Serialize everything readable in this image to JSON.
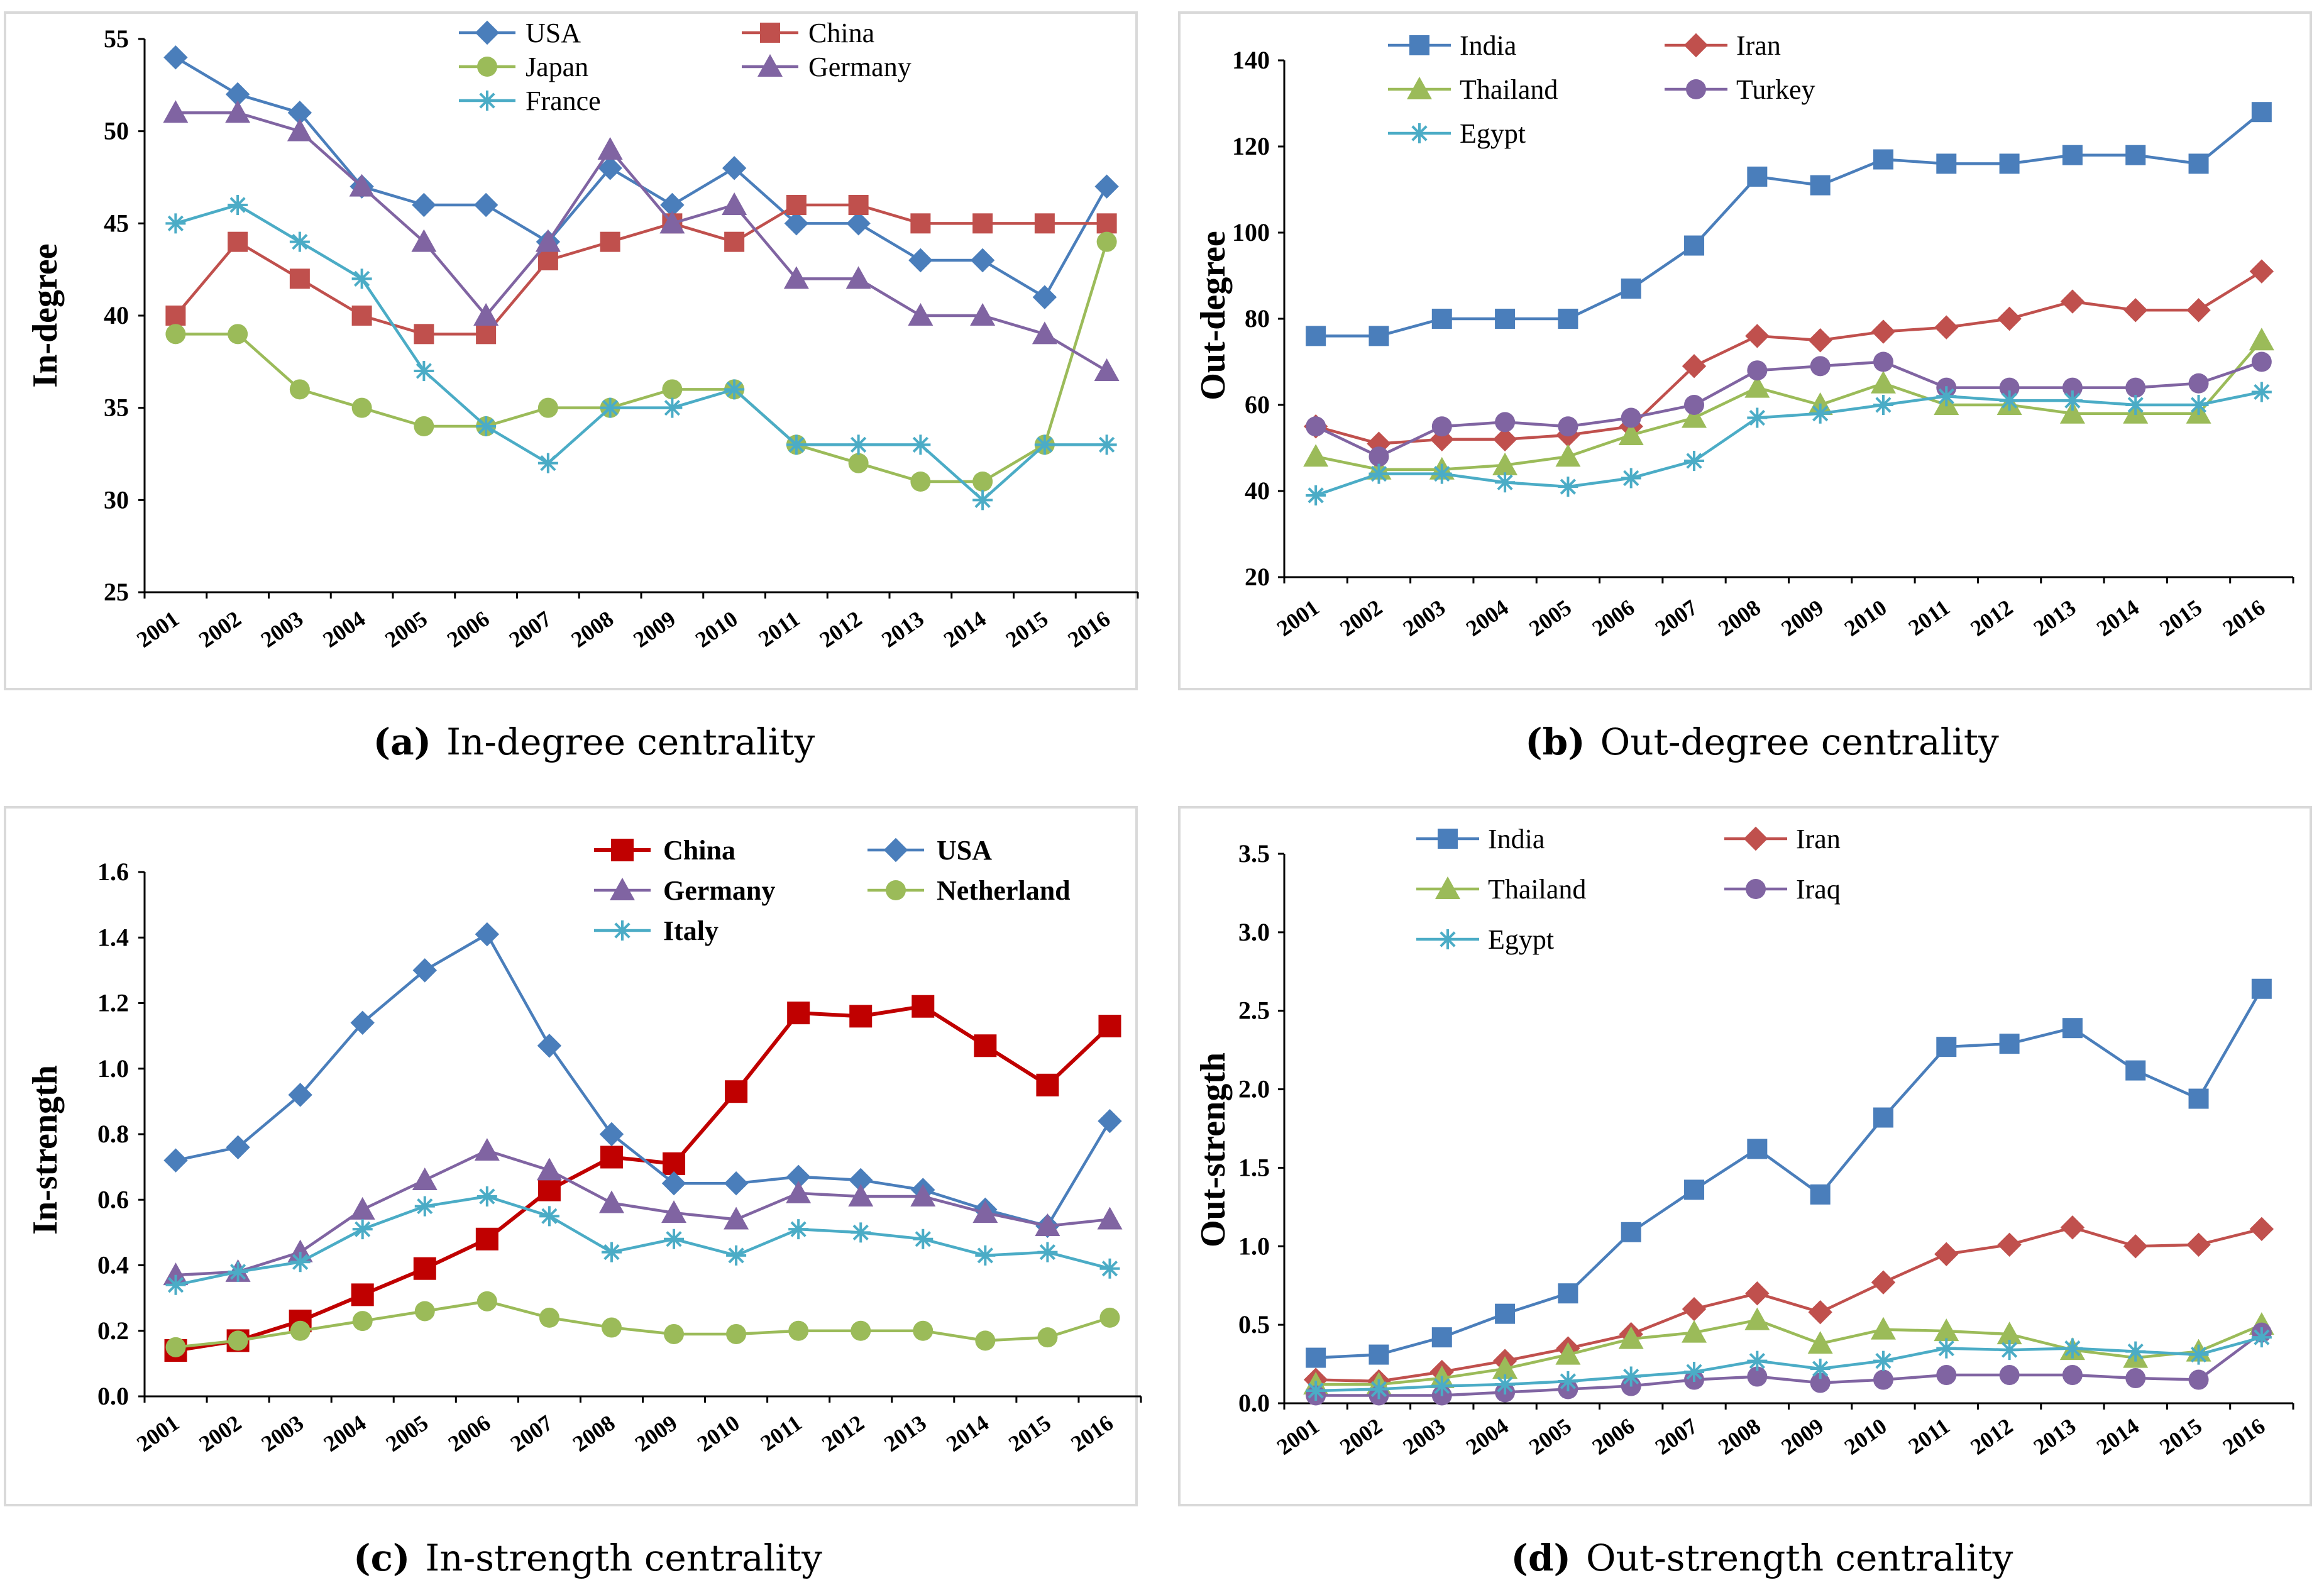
{
  "chart_data": [
    {
      "id": "a",
      "type": "line",
      "caption_tag": "(a)",
      "caption": "In-degree centrality",
      "ylabel": "In-degree",
      "xlabel": "",
      "categories": [
        "2001",
        "2002",
        "2003",
        "2004",
        "2005",
        "2006",
        "2007",
        "2008",
        "2009",
        "2010",
        "2011",
        "2012",
        "2013",
        "2014",
        "2015",
        "2016"
      ],
      "ylim": [
        25,
        55
      ],
      "yticks": [
        25,
        30,
        35,
        40,
        45,
        50,
        55
      ],
      "ytick_labels": [
        "25",
        "30",
        "35",
        "40",
        "45",
        "50",
        "55"
      ],
      "legend_bold": false,
      "series": [
        {
          "name": "USA",
          "color": "#4a7ebb",
          "marker": "diamond",
          "values": [
            54,
            52,
            51,
            47,
            46,
            46,
            44,
            48,
            46,
            48,
            45,
            45,
            43,
            43,
            41,
            47
          ]
        },
        {
          "name": "China",
          "color": "#c0504d",
          "marker": "square",
          "values": [
            40,
            44,
            42,
            40,
            39,
            39,
            43,
            44,
            45,
            44,
            46,
            46,
            45,
            45,
            45,
            45
          ]
        },
        {
          "name": "Japan",
          "color": "#9bbb59",
          "marker": "circle",
          "values": [
            39,
            39,
            36,
            35,
            34,
            34,
            35,
            35,
            36,
            36,
            33,
            32,
            31,
            31,
            33,
            44
          ]
        },
        {
          "name": "Germany",
          "color": "#8064a2",
          "marker": "triangle",
          "values": [
            51,
            51,
            50,
            47,
            44,
            40,
            44,
            49,
            45,
            46,
            42,
            42,
            40,
            40,
            39,
            37
          ]
        },
        {
          "name": "France",
          "color": "#4bacc6",
          "marker": "star",
          "values": [
            45,
            46,
            44,
            42,
            37,
            34,
            32,
            35,
            35,
            36,
            33,
            33,
            33,
            30,
            33,
            33
          ]
        }
      ]
    },
    {
      "id": "b",
      "type": "line",
      "caption_tag": "(b)",
      "caption": "Out-degree centrality",
      "ylabel": "Out-degree",
      "xlabel": "",
      "categories": [
        "2001",
        "2002",
        "2003",
        "2004",
        "2005",
        "2006",
        "2007",
        "2008",
        "2009",
        "2010",
        "2011",
        "2012",
        "2013",
        "2014",
        "2015",
        "2016"
      ],
      "ylim": [
        20,
        140
      ],
      "yticks": [
        20,
        40,
        60,
        80,
        100,
        120,
        140
      ],
      "ytick_labels": [
        "20",
        "40",
        "60",
        "80",
        "100",
        "120",
        "140"
      ],
      "legend_bold": false,
      "series": [
        {
          "name": "India",
          "color": "#4a7ebb",
          "marker": "square",
          "values": [
            76,
            76,
            80,
            80,
            80,
            87,
            97,
            113,
            111,
            117,
            116,
            116,
            118,
            118,
            116,
            128
          ]
        },
        {
          "name": "Iran",
          "color": "#c0504d",
          "marker": "diamond",
          "values": [
            55,
            51,
            52,
            52,
            53,
            55,
            69,
            76,
            75,
            77,
            78,
            80,
            84,
            82,
            82,
            91
          ]
        },
        {
          "name": "Thailand",
          "color": "#9bbb59",
          "marker": "triangle",
          "values": [
            48,
            45,
            45,
            46,
            48,
            53,
            57,
            64,
            60,
            65,
            60,
            60,
            58,
            58,
            58,
            75
          ]
        },
        {
          "name": "Turkey",
          "color": "#8064a2",
          "marker": "circle",
          "values": [
            55,
            48,
            55,
            56,
            55,
            57,
            60,
            68,
            69,
            70,
            64,
            64,
            64,
            64,
            65,
            70
          ]
        },
        {
          "name": "Egypt",
          "color": "#4bacc6",
          "marker": "star",
          "values": [
            39,
            44,
            44,
            42,
            41,
            43,
            47,
            57,
            58,
            60,
            62,
            61,
            61,
            60,
            60,
            63
          ]
        }
      ]
    },
    {
      "id": "c",
      "type": "line",
      "caption_tag": "(c)",
      "caption": "In-strength centrality",
      "ylabel": "In-strength",
      "xlabel": "",
      "categories": [
        "2001",
        "2002",
        "2003",
        "2004",
        "2005",
        "2006",
        "2007",
        "2008",
        "2009",
        "2010",
        "2011",
        "2012",
        "2013",
        "2014",
        "2015",
        "2016"
      ],
      "ylim": [
        0,
        1.6
      ],
      "yticks": [
        0,
        0.2,
        0.4,
        0.6,
        0.8,
        1.0,
        1.2,
        1.4,
        1.6
      ],
      "ytick_labels": [
        "0.0",
        "0.2",
        "0.4",
        "0.6",
        "0.8",
        "1.0",
        "1.2",
        "1.4",
        "1.6"
      ],
      "legend_bold": true,
      "series": [
        {
          "name": "China",
          "color": "#c00000",
          "marker": "square",
          "width": 6,
          "values": [
            0.14,
            0.17,
            0.23,
            0.31,
            0.39,
            0.48,
            0.63,
            0.73,
            0.71,
            0.93,
            1.17,
            1.16,
            1.19,
            1.07,
            0.95,
            1.13
          ]
        },
        {
          "name": "USA",
          "color": "#4a7ebb",
          "marker": "diamond",
          "values": [
            0.72,
            0.76,
            0.92,
            1.14,
            1.3,
            1.41,
            1.07,
            0.8,
            0.65,
            0.65,
            0.67,
            0.66,
            0.63,
            0.57,
            0.52,
            0.84
          ]
        },
        {
          "name": "Germany",
          "color": "#8064a2",
          "marker": "triangle",
          "values": [
            0.37,
            0.38,
            0.44,
            0.57,
            0.66,
            0.75,
            0.69,
            0.59,
            0.56,
            0.54,
            0.62,
            0.61,
            0.61,
            0.56,
            0.52,
            0.54
          ]
        },
        {
          "name": "Netherland",
          "color": "#9bbb59",
          "marker": "circle",
          "values": [
            0.15,
            0.17,
            0.2,
            0.23,
            0.26,
            0.29,
            0.24,
            0.21,
            0.19,
            0.19,
            0.2,
            0.2,
            0.2,
            0.17,
            0.18,
            0.24
          ]
        },
        {
          "name": "Italy",
          "color": "#4bacc6",
          "marker": "star",
          "values": [
            0.34,
            0.38,
            0.41,
            0.51,
            0.58,
            0.61,
            0.55,
            0.44,
            0.48,
            0.43,
            0.51,
            0.5,
            0.48,
            0.43,
            0.44,
            0.39
          ]
        }
      ]
    },
    {
      "id": "d",
      "type": "line",
      "caption_tag": "(d)",
      "caption": "Out-strength centrality",
      "ylabel": "Out-strength",
      "xlabel": "",
      "categories": [
        "2001",
        "2002",
        "2003",
        "2004",
        "2005",
        "2006",
        "2007",
        "2008",
        "2009",
        "2010",
        "2011",
        "2012",
        "2013",
        "2014",
        "2015",
        "2016"
      ],
      "ylim": [
        0,
        3.5
      ],
      "yticks": [
        0,
        0.5,
        1.0,
        1.5,
        2.0,
        2.5,
        3.0,
        3.5
      ],
      "ytick_labels": [
        "0.0",
        "0.5",
        "1.0",
        "1.5",
        "2.0",
        "2.5",
        "3.0",
        "3.5"
      ],
      "legend_bold": false,
      "series": [
        {
          "name": "India",
          "color": "#4a7ebb",
          "marker": "square",
          "values": [
            0.29,
            0.31,
            0.42,
            0.57,
            0.7,
            1.09,
            1.36,
            1.62,
            1.33,
            1.82,
            2.27,
            2.29,
            2.39,
            2.12,
            1.94,
            2.64
          ]
        },
        {
          "name": "Iran",
          "color": "#c0504d",
          "marker": "diamond",
          "values": [
            0.15,
            0.14,
            0.2,
            0.27,
            0.35,
            0.44,
            0.6,
            0.7,
            0.58,
            0.77,
            0.95,
            1.01,
            1.12,
            1.0,
            1.01,
            1.11
          ]
        },
        {
          "name": "Thailand",
          "color": "#9bbb59",
          "marker": "triangle",
          "values": [
            0.12,
            0.12,
            0.16,
            0.22,
            0.31,
            0.41,
            0.45,
            0.53,
            0.38,
            0.47,
            0.46,
            0.44,
            0.34,
            0.29,
            0.33,
            0.5
          ]
        },
        {
          "name": "Iraq",
          "color": "#8064a2",
          "marker": "circle",
          "values": [
            0.05,
            0.05,
            0.05,
            0.07,
            0.09,
            0.11,
            0.15,
            0.17,
            0.13,
            0.15,
            0.18,
            0.18,
            0.18,
            0.16,
            0.15,
            0.45
          ]
        },
        {
          "name": "Egypt",
          "color": "#4bacc6",
          "marker": "star",
          "values": [
            0.08,
            0.09,
            0.11,
            0.12,
            0.14,
            0.17,
            0.2,
            0.27,
            0.22,
            0.27,
            0.35,
            0.34,
            0.35,
            0.33,
            0.31,
            0.42
          ]
        }
      ]
    }
  ]
}
